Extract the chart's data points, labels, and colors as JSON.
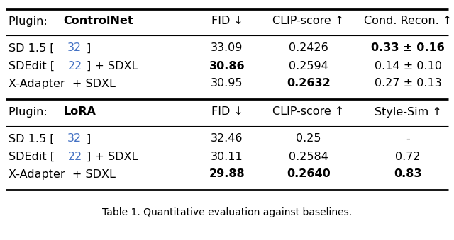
{
  "title": "Table 1. Quantitative evaluation against baselines.",
  "background_color": "#ffffff",
  "figsize": [
    6.4,
    3.39
  ],
  "dpi": 100,
  "font_size": 11.5,
  "caption_size": 10.0,
  "blue_color": "#4472C4",
  "sections": [
    {
      "header_plain": "Plugin: ",
      "header_bold": "ControlNet",
      "col_headers": [
        "FID ↓",
        "CLIP-score ↑",
        "Cond. Recon. ↑"
      ],
      "rows": [
        {
          "method_parts": [
            {
              "text": "SD 1.5 [",
              "bold": false,
              "color": "#000000"
            },
            {
              "text": "32",
              "bold": false,
              "color": "#4472C4"
            },
            {
              "text": "]",
              "bold": false,
              "color": "#000000"
            }
          ],
          "values": [
            {
              "text": "33.09",
              "bold": false
            },
            {
              "text": "0.2426",
              "bold": false
            },
            {
              "text": "0.33 ± 0.16",
              "bold": true
            }
          ]
        },
        {
          "method_parts": [
            {
              "text": "SDEdit [",
              "bold": false,
              "color": "#000000"
            },
            {
              "text": "22",
              "bold": false,
              "color": "#4472C4"
            },
            {
              "text": "] + SDXL",
              "bold": false,
              "color": "#000000"
            }
          ],
          "values": [
            {
              "text": "30.86",
              "bold": true
            },
            {
              "text": "0.2594",
              "bold": false
            },
            {
              "text": "0.14 ± 0.10",
              "bold": false
            }
          ]
        },
        {
          "method_parts": [
            {
              "text": "X-Adapter  + SDXL",
              "bold": false,
              "color": "#000000"
            }
          ],
          "values": [
            {
              "text": "30.95",
              "bold": false
            },
            {
              "text": "0.2632",
              "bold": true
            },
            {
              "text": "0.27 ± 0.13",
              "bold": false
            }
          ]
        }
      ]
    },
    {
      "header_plain": "Plugin: ",
      "header_bold": "LoRA",
      "col_headers": [
        "FID ↓",
        "CLIP-score ↑",
        "Style-Sim ↑"
      ],
      "rows": [
        {
          "method_parts": [
            {
              "text": "SD 1.5 [",
              "bold": false,
              "color": "#000000"
            },
            {
              "text": "32",
              "bold": false,
              "color": "#4472C4"
            },
            {
              "text": "]",
              "bold": false,
              "color": "#000000"
            }
          ],
          "values": [
            {
              "text": "32.46",
              "bold": false
            },
            {
              "text": "0.25",
              "bold": false
            },
            {
              "text": "-",
              "bold": false
            }
          ]
        },
        {
          "method_parts": [
            {
              "text": "SDEdit [",
              "bold": false,
              "color": "#000000"
            },
            {
              "text": "22",
              "bold": false,
              "color": "#4472C4"
            },
            {
              "text": "] + SDXL",
              "bold": false,
              "color": "#000000"
            }
          ],
          "values": [
            {
              "text": "30.11",
              "bold": false
            },
            {
              "text": "0.2584",
              "bold": false
            },
            {
              "text": "0.72",
              "bold": false
            }
          ]
        },
        {
          "method_parts": [
            {
              "text": "X-Adapter  + SDXL",
              "bold": false,
              "color": "#000000"
            }
          ],
          "values": [
            {
              "text": "29.88",
              "bold": true
            },
            {
              "text": "0.2640",
              "bold": true
            },
            {
              "text": "0.83",
              "bold": true
            }
          ]
        }
      ]
    }
  ]
}
